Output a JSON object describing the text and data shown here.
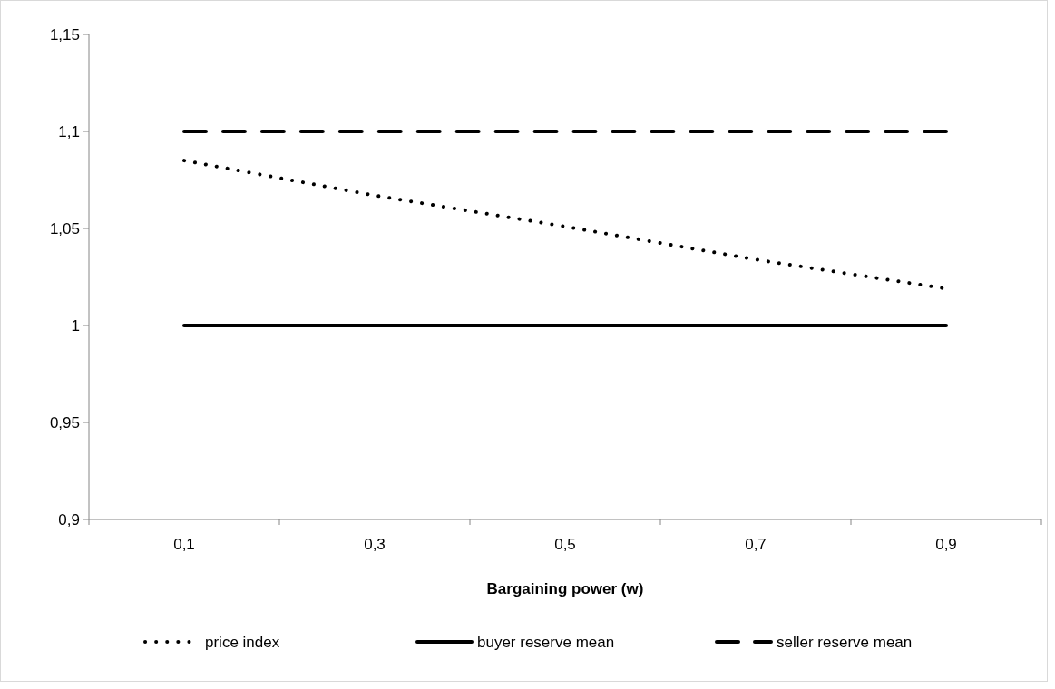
{
  "chart_data": {
    "type": "line",
    "xlabel": "Bargaining power (w)",
    "categories": [
      "0,1",
      "0,3",
      "0,5",
      "0,7",
      "0,9"
    ],
    "ylim": [
      0.9,
      1.15
    ],
    "yticks": [
      {
        "value": 0.9,
        "label": "0,9"
      },
      {
        "value": 0.95,
        "label": "0,95"
      },
      {
        "value": 1,
        "label": "1"
      },
      {
        "value": 1.05,
        "label": "1,05"
      },
      {
        "value": 1.1,
        "label": "1,1"
      },
      {
        "value": 1.15,
        "label": "1,15"
      }
    ],
    "grid": false,
    "legend": "bottom",
    "marker": "none",
    "series": [
      {
        "name": "price index",
        "color": "#000000",
        "line_style": "dotted",
        "values": [
          1.085,
          1.067,
          1.051,
          1.034,
          1.019
        ]
      },
      {
        "name": "buyer reserve mean",
        "color": "#000000",
        "line_style": "solid",
        "values": [
          1,
          1,
          1,
          1,
          1
        ]
      },
      {
        "name": "seller reserve mean",
        "color": "#000000",
        "line_style": "dashed",
        "values": [
          1.1,
          1.1,
          1.1,
          1.1,
          1.1
        ]
      }
    ]
  }
}
